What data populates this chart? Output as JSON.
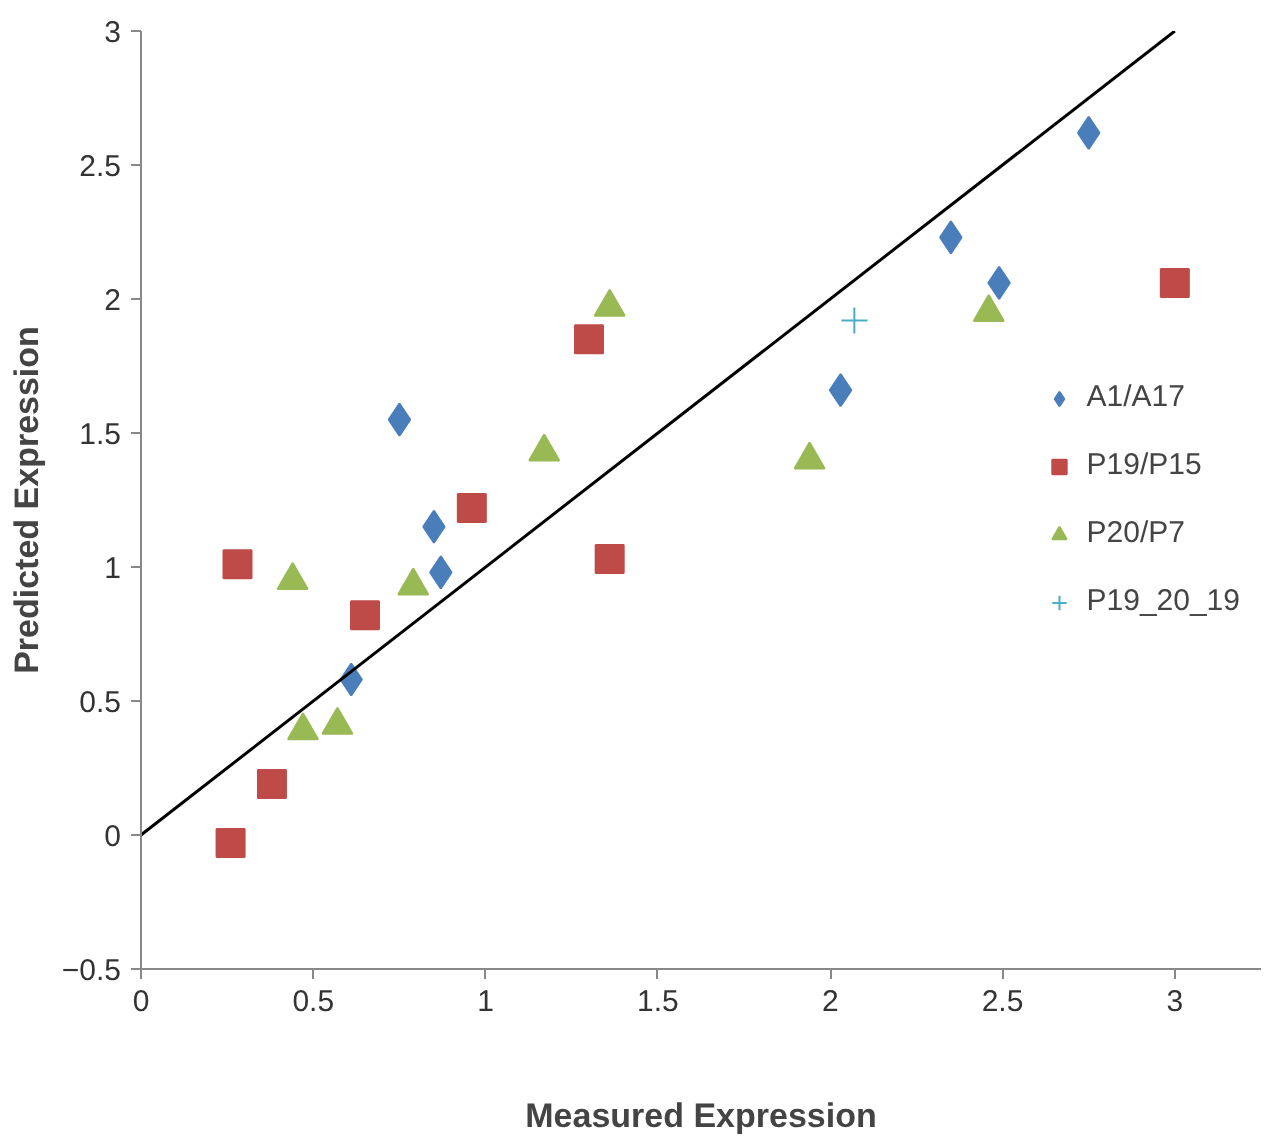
{
  "chart_data": {
    "type": "scatter",
    "xlabel": "Measured Expression",
    "ylabel": "Predicted Expression",
    "xlim": [
      0,
      3.25
    ],
    "ylim": [
      -0.5,
      3
    ],
    "xticks": [
      0,
      0.5,
      1,
      1.5,
      2,
      2.5,
      3
    ],
    "yticks": [
      -0.5,
      0,
      0.5,
      1,
      1.5,
      2,
      2.5,
      3
    ],
    "grid": false,
    "legend": "right",
    "series": [
      {
        "name": "A1/A17",
        "color": "#4a7ebb",
        "marker": "diamond",
        "x": [
          0.61,
          0.75,
          0.85,
          0.87,
          2.03,
          2.35,
          2.49,
          2.75
        ],
        "values": [
          0.58,
          1.55,
          1.15,
          0.98,
          1.66,
          2.23,
          2.06,
          2.62
        ]
      },
      {
        "name": "P19/P15",
        "color": "#be4b48",
        "marker": "square",
        "x": [
          0.26,
          0.28,
          0.38,
          0.65,
          0.96,
          1.3,
          1.36,
          3.0
        ],
        "values": [
          -0.03,
          1.01,
          0.19,
          0.82,
          1.22,
          1.85,
          1.03,
          2.06
        ]
      },
      {
        "name": "P20/P7",
        "color": "#98b954",
        "marker": "triangle",
        "x": [
          0.44,
          0.47,
          0.57,
          0.79,
          1.17,
          1.36,
          1.94,
          2.46
        ],
        "values": [
          0.95,
          0.39,
          0.41,
          0.93,
          1.43,
          1.97,
          1.4,
          1.95
        ]
      },
      {
        "name": "P19_20_19",
        "color": "#4bacc6",
        "marker": "cross",
        "x": [
          2.07
        ],
        "values": [
          1.92
        ]
      },
      {
        "type": "line",
        "color": "#000000",
        "x": [
          0,
          3
        ],
        "values": [
          0,
          3
        ]
      }
    ]
  }
}
